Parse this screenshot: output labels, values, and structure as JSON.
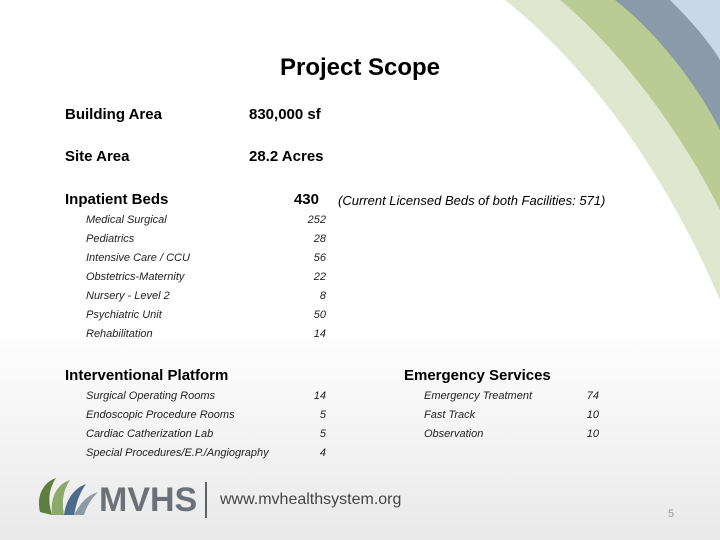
{
  "title": "Project Scope",
  "summary": [
    {
      "label": "Building Area",
      "value": "830,000 sf"
    },
    {
      "label": "Site Area",
      "value": "28.2 Acres"
    }
  ],
  "inpatient": {
    "label": "Inpatient Beds",
    "total": 430,
    "note": "(Current Licensed Beds of both Facilities: 571)",
    "items": [
      {
        "label": "Medical Surgical",
        "value": 252
      },
      {
        "label": "Pediatrics",
        "value": 28
      },
      {
        "label": "Intensive Care / CCU",
        "value": 56
      },
      {
        "label": "Obstetrics-Maternity",
        "value": 22
      },
      {
        "label": "Nursery - Level 2",
        "value": 8
      },
      {
        "label": "Psychiatric Unit",
        "value": 50
      },
      {
        "label": "Rehabilitation",
        "value": 14
      }
    ]
  },
  "interventional": {
    "label": "Interventional Platform",
    "items": [
      {
        "label": "Surgical Operating Rooms",
        "value": 14
      },
      {
        "label": "Endoscopic Procedure Rooms",
        "value": 5
      },
      {
        "label": "Cardiac Catherization Lab",
        "value": 5
      },
      {
        "label": "Special Procedures/E.P./Angiography",
        "value": 4
      }
    ]
  },
  "emergency": {
    "label": "Emergency Services",
    "items": [
      {
        "label": "Emergency Treatment",
        "value": 74
      },
      {
        "label": "Fast Track",
        "value": 10
      },
      {
        "label": "Observation",
        "value": 10
      }
    ]
  },
  "footer": {
    "logo": "MVHS",
    "url": "www.mvhealthsystem.org",
    "page": 5
  }
}
